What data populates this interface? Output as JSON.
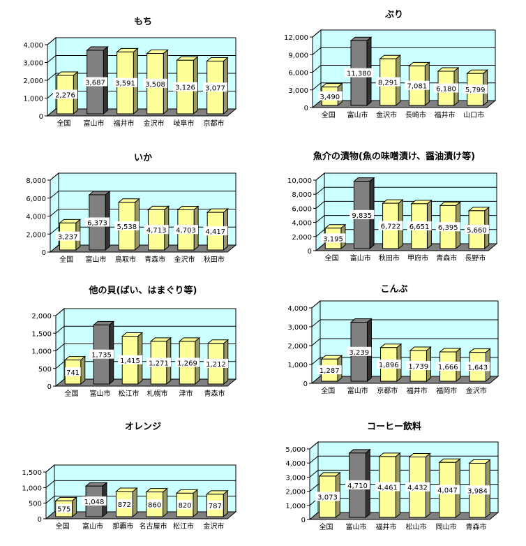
{
  "colors": {
    "floor": "#808080",
    "wall": "#ccffff",
    "bar_yellow_front": "#ffff99",
    "bar_yellow_side": "#999966",
    "bar_highlight_front": "#808080",
    "bar_highlight_side": "#333333",
    "grid": "#000000",
    "label_bg": "#ffffff"
  },
  "chart_data": [
    {
      "type": "bar",
      "title": "もち",
      "categories": [
        "全国",
        "富山市",
        "福井市",
        "金沢市",
        "岐阜市",
        "京都市"
      ],
      "values": [
        2276,
        3687,
        3591,
        3508,
        3126,
        3077
      ],
      "value_labels": [
        "2,276",
        "3,687",
        "3,591",
        "3,508",
        "3,126",
        "3,077"
      ],
      "yticks": [
        "0",
        "1,000",
        "2,000",
        "3,000",
        "4,000"
      ],
      "ylim": [
        0,
        4000
      ],
      "highlight_index": 1,
      "grid": true
    },
    {
      "type": "bar",
      "title": "ぶり",
      "categories": [
        "全国",
        "富山市",
        "金沢市",
        "長崎市",
        "福井市",
        "山口市"
      ],
      "values": [
        3490,
        11380,
        8291,
        7081,
        6180,
        5799
      ],
      "value_labels": [
        "3,490",
        "11,380",
        "8,291",
        "7,081",
        "6,180",
        "5,799"
      ],
      "yticks": [
        "0",
        "3,000",
        "6,000",
        "9,000",
        "12,000"
      ],
      "ylim": [
        0,
        12000
      ],
      "highlight_index": 1,
      "grid": true
    },
    {
      "type": "bar",
      "title": "いか",
      "categories": [
        "全国",
        "富山市",
        "鳥取市",
        "青森市",
        "金沢市",
        "秋田市"
      ],
      "values": [
        3237,
        6373,
        5538,
        4713,
        4703,
        4417
      ],
      "value_labels": [
        "3,237",
        "6,373",
        "5,538",
        "4,713",
        "4,703",
        "4,417"
      ],
      "yticks": [
        "0",
        "2,000",
        "4,000",
        "6,000",
        "8,000"
      ],
      "ylim": [
        0,
        8000
      ],
      "highlight_index": 1,
      "grid": true
    },
    {
      "type": "bar",
      "title": "魚介の漬物(魚の味噌漬け、醤油漬け等)",
      "categories": [
        "全国",
        "富山市",
        "秋田市",
        "甲府市",
        "青森市",
        "長野市"
      ],
      "values": [
        3195,
        9835,
        6722,
        6651,
        6395,
        5660
      ],
      "value_labels": [
        "3,195",
        "9,835",
        "6,722",
        "6,651",
        "6,395",
        "5,660"
      ],
      "yticks": [
        "0",
        "2,000",
        "4,000",
        "6,000",
        "8,000",
        "10,000"
      ],
      "ylim": [
        0,
        10000
      ],
      "highlight_index": 1,
      "grid": true
    },
    {
      "type": "bar",
      "title": "他の貝(ばい、はまぐり等)",
      "categories": [
        "全国",
        "富山市",
        "松江市",
        "札幌市",
        "津市",
        "青森市"
      ],
      "values": [
        741,
        1735,
        1415,
        1271,
        1269,
        1212
      ],
      "value_labels": [
        "741",
        "1,735",
        "1,415",
        "1,271",
        "1,269",
        "1,212"
      ],
      "yticks": [
        "0",
        "500",
        "1,000",
        "1,500",
        "2,000"
      ],
      "ylim": [
        0,
        2000
      ],
      "highlight_index": 1,
      "grid": true
    },
    {
      "type": "bar",
      "title": "こんぶ",
      "categories": [
        "全国",
        "富山市",
        "京都市",
        "福井市",
        "福岡市",
        "金沢市"
      ],
      "values": [
        1287,
        3239,
        1896,
        1739,
        1666,
        1643
      ],
      "value_labels": [
        "1,287",
        "3,239",
        "1,896",
        "1,739",
        "1,666",
        "1,643"
      ],
      "yticks": [
        "0",
        "1,000",
        "2,000",
        "3,000",
        "4,000"
      ],
      "ylim": [
        0,
        4000
      ],
      "highlight_index": 1,
      "grid": true
    },
    {
      "type": "bar",
      "title": "オレンジ",
      "categories": [
        "全国",
        "富山市",
        "那覇市",
        "名古屋市",
        "松江市",
        "金沢市"
      ],
      "values": [
        575,
        1048,
        872,
        860,
        820,
        787
      ],
      "value_labels": [
        "575",
        "1,048",
        "872",
        "860",
        "820",
        "787"
      ],
      "yticks": [
        "0",
        "500",
        "1,000",
        "1,500"
      ],
      "ylim": [
        0,
        1500
      ],
      "highlight_index": 1,
      "grid": true
    },
    {
      "type": "bar",
      "title": "コーヒー飲料",
      "categories": [
        "全国",
        "富山市",
        "福井市",
        "松山市",
        "岡山市",
        "青森市"
      ],
      "values": [
        3073,
        4710,
        4461,
        4432,
        4047,
        3984
      ],
      "value_labels": [
        "3,073",
        "4,710",
        "4,461",
        "4,432",
        "4,047",
        "3,984"
      ],
      "yticks": [
        "0",
        "1,000",
        "2,000",
        "3,000",
        "4,000",
        "5,000"
      ],
      "ylim": [
        0,
        5000
      ],
      "highlight_index": 1,
      "grid": true
    }
  ]
}
